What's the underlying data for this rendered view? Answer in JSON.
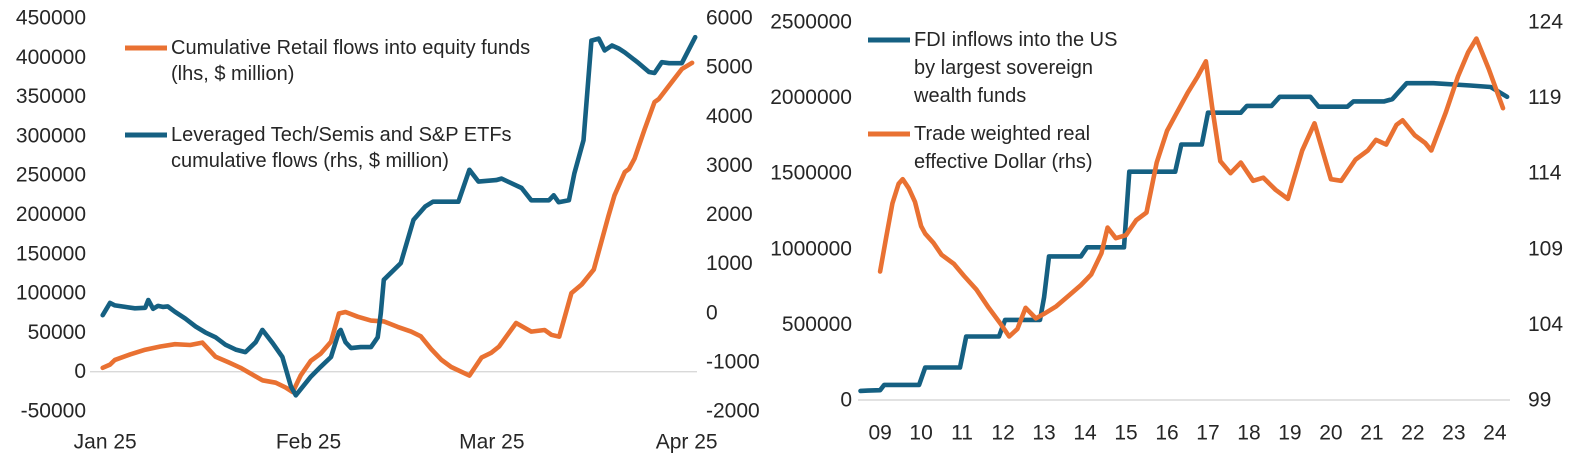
{
  "style": {
    "accent_orange": "#E97132",
    "accent_blue": "#156082",
    "gridline": "#D9D9D9",
    "text": "#262626",
    "background": "#FFFFFF"
  },
  "chart_data": [
    {
      "name": "retail-vs-leveraged-etf-flows-chart",
      "type": "line",
      "title": "",
      "grid": "zero-line-only",
      "legend_position": "top-left-inside",
      "x_axis": {
        "min": 0,
        "max": 100,
        "ticks": [
          {
            "label": "Jan 25",
            "x": 2.5
          },
          {
            "label": "Feb 25",
            "x": 36
          },
          {
            "label": "Mar 25",
            "x": 66.2
          },
          {
            "label": "Apr 25",
            "x": 98.3
          }
        ]
      },
      "left_axis": {
        "min": -50000,
        "max": 450000,
        "ticks": [
          450000,
          400000,
          350000,
          300000,
          250000,
          200000,
          150000,
          100000,
          50000,
          0,
          -50000
        ]
      },
      "right_axis": {
        "min": -2000,
        "max": 6000,
        "ticks": [
          6000,
          5000,
          4000,
          3000,
          2000,
          1000,
          0,
          -1000,
          -2000
        ]
      },
      "series": [
        {
          "key": "retail-flows",
          "axis": "left",
          "color": "#E97132",
          "legend_lines": [
            "Cumulative Retail flows into equity funds",
            "(lhs, $ million)"
          ],
          "points": [
            [
              2.1,
              5000
            ],
            [
              3.3,
              9000
            ],
            [
              4.1,
              15000
            ],
            [
              6.6,
              22000
            ],
            [
              9.1,
              28000
            ],
            [
              11.6,
              32000
            ],
            [
              14,
              35000
            ],
            [
              16.5,
              34000
            ],
            [
              18.5,
              37000
            ],
            [
              20.7,
              19000
            ],
            [
              22.8,
              12000
            ],
            [
              24.8,
              5000
            ],
            [
              26.8,
              -4000
            ],
            [
              28.4,
              -11000
            ],
            [
              30.6,
              -14000
            ],
            [
              32.2,
              -20000
            ],
            [
              33.4,
              -26000
            ],
            [
              34.7,
              -5000
            ],
            [
              36.4,
              14000
            ],
            [
              38,
              23000
            ],
            [
              39.7,
              38000
            ],
            [
              41,
              74000
            ],
            [
              42.1,
              76000
            ],
            [
              44.1,
              70000
            ],
            [
              46.3,
              65000
            ],
            [
              48.4,
              64000
            ],
            [
              50.7,
              57000
            ],
            [
              52.9,
              51000
            ],
            [
              54.5,
              45000
            ],
            [
              56.2,
              29000
            ],
            [
              57.9,
              15000
            ],
            [
              59.5,
              6000
            ],
            [
              62.5,
              -5000
            ],
            [
              64.5,
              18000
            ],
            [
              66.1,
              24000
            ],
            [
              67.4,
              32000
            ],
            [
              70.2,
              62000
            ],
            [
              72.7,
              51000
            ],
            [
              74.9,
              53000
            ],
            [
              76,
              47000
            ],
            [
              77.3,
              44500
            ],
            [
              79.3,
              100000
            ],
            [
              81,
              111000
            ],
            [
              83,
              130000
            ],
            [
              85.4,
              198000
            ],
            [
              86.4,
              224000
            ],
            [
              88.1,
              254000
            ],
            [
              88.8,
              258000
            ],
            [
              89.7,
              271000
            ],
            [
              91.4,
              309000
            ],
            [
              93,
              343000
            ],
            [
              93.7,
              347000
            ],
            [
              95.9,
              369000
            ],
            [
              97.5,
              385000
            ],
            [
              99.2,
              393000
            ]
          ]
        },
        {
          "key": "leveraged-etf-flows",
          "axis": "right",
          "color": "#156082",
          "legend_lines": [
            "Leveraged Tech/Semis and S&P ETFs",
            "cumulative flows (rhs, $ million)"
          ],
          "points": [
            [
              2.1,
              -50
            ],
            [
              3.3,
              200
            ],
            [
              4.1,
              150
            ],
            [
              5.8,
              120
            ],
            [
              7.4,
              90
            ],
            [
              9.1,
              100
            ],
            [
              9.6,
              260
            ],
            [
              10.4,
              80
            ],
            [
              11.2,
              140
            ],
            [
              12,
              120
            ],
            [
              12.8,
              130
            ],
            [
              14,
              20
            ],
            [
              15.7,
              -120
            ],
            [
              17.4,
              -280
            ],
            [
              19,
              -400
            ],
            [
              20.7,
              -500
            ],
            [
              22.3,
              -650
            ],
            [
              24,
              -750
            ],
            [
              25.6,
              -800
            ],
            [
              27.3,
              -600
            ],
            [
              28.4,
              -350
            ],
            [
              30.1,
              -620
            ],
            [
              31.7,
              -900
            ],
            [
              33.1,
              -1500
            ],
            [
              33.9,
              -1680
            ],
            [
              36.4,
              -1300
            ],
            [
              38,
              -1100
            ],
            [
              39.7,
              -900
            ],
            [
              41,
              -390
            ],
            [
              41.3,
              -350
            ],
            [
              42.1,
              -600
            ],
            [
              43,
              -720
            ],
            [
              44.6,
              -700
            ],
            [
              46.3,
              -700
            ],
            [
              47.4,
              -500
            ],
            [
              47.9,
              -10
            ],
            [
              48.4,
              670
            ],
            [
              51.2,
              1010
            ],
            [
              53.3,
              1890
            ],
            [
              55.2,
              2160
            ],
            [
              56.5,
              2260
            ],
            [
              60.7,
              2260
            ],
            [
              62.5,
              2910
            ],
            [
              64,
              2670
            ],
            [
              66.9,
              2700
            ],
            [
              67.8,
              2730
            ],
            [
              71.1,
              2540
            ],
            [
              72.7,
              2290
            ],
            [
              75.6,
              2290
            ],
            [
              76.4,
              2390
            ],
            [
              77.2,
              2250
            ],
            [
              78.9,
              2290
            ],
            [
              79.8,
              2840
            ],
            [
              81.3,
              3510
            ],
            [
              82.6,
              5540
            ],
            [
              83.8,
              5580
            ],
            [
              84.8,
              5340
            ],
            [
              86,
              5440
            ],
            [
              87.1,
              5380
            ],
            [
              88.1,
              5300
            ],
            [
              90.4,
              5080
            ],
            [
              92.1,
              4900
            ],
            [
              93,
              4880
            ],
            [
              94.2,
              5100
            ],
            [
              95.4,
              5080
            ],
            [
              97.5,
              5080
            ],
            [
              99.7,
              5610
            ]
          ]
        }
      ]
    },
    {
      "name": "fdi-vs-dollar-chart",
      "type": "line",
      "title": "",
      "grid": "baseline-only",
      "legend_position": "top-left-inside",
      "x_axis": {
        "min": 8.46,
        "max": 24.37,
        "ticks": [
          {
            "label": "09",
            "x": 9
          },
          {
            "label": "10",
            "x": 10
          },
          {
            "label": "11",
            "x": 11
          },
          {
            "label": "12",
            "x": 12
          },
          {
            "label": "13",
            "x": 13
          },
          {
            "label": "14",
            "x": 14
          },
          {
            "label": "15",
            "x": 15
          },
          {
            "label": "16",
            "x": 16
          },
          {
            "label": "17",
            "x": 17
          },
          {
            "label": "18",
            "x": 18
          },
          {
            "label": "19",
            "x": 19
          },
          {
            "label": "20",
            "x": 20
          },
          {
            "label": "21",
            "x": 21
          },
          {
            "label": "22",
            "x": 22
          },
          {
            "label": "23",
            "x": 23
          },
          {
            "label": "24",
            "x": 24
          }
        ]
      },
      "left_axis": {
        "min": 0,
        "max": 2500000,
        "ticks": [
          2500000,
          2000000,
          1500000,
          1000000,
          500000,
          0
        ]
      },
      "right_axis": {
        "min": 99,
        "max": 124,
        "ticks": [
          124,
          119,
          114,
          109,
          104,
          99
        ]
      },
      "series": [
        {
          "key": "fdi-inflows",
          "axis": "left",
          "color": "#156082",
          "legend_lines": [
            "FDI inflows into the US",
            "by largest sovereign",
            "wealth funds"
          ],
          "points": [
            [
              8.52,
              60000
            ],
            [
              8.7,
              62000
            ],
            [
              9.0,
              65000
            ],
            [
              9.1,
              100000
            ],
            [
              9.95,
              100000
            ],
            [
              10.1,
              215000
            ],
            [
              10.95,
              215000
            ],
            [
              11.1,
              420000
            ],
            [
              11.9,
              420000
            ],
            [
              12.05,
              530000
            ],
            [
              12.9,
              530000
            ],
            [
              13.0,
              680000
            ],
            [
              13.12,
              950000
            ],
            [
              13.9,
              950000
            ],
            [
              14.05,
              1010000
            ],
            [
              14.95,
              1010000
            ],
            [
              15.08,
              1510000
            ],
            [
              16.2,
              1510000
            ],
            [
              16.35,
              1690000
            ],
            [
              16.85,
              1690000
            ],
            [
              17.0,
              1900000
            ],
            [
              17.8,
              1900000
            ],
            [
              17.95,
              1945000
            ],
            [
              18.55,
              1945000
            ],
            [
              18.75,
              2005000
            ],
            [
              19.5,
              2005000
            ],
            [
              19.7,
              1940000
            ],
            [
              20.4,
              1940000
            ],
            [
              20.55,
              1975000
            ],
            [
              21.3,
              1975000
            ],
            [
              21.5,
              1990000
            ],
            [
              21.85,
              2095000
            ],
            [
              22.5,
              2095000
            ],
            [
              23.4,
              2080000
            ],
            [
              23.9,
              2070000
            ],
            [
              24.3,
              2005000
            ]
          ]
        },
        {
          "key": "trade-weighted-dollar",
          "axis": "right",
          "color": "#E97132",
          "legend_lines": [
            "Trade weighted real",
            "effective Dollar (rhs)"
          ],
          "points": [
            [
              9.0,
              107.5
            ],
            [
              9.15,
              109.8
            ],
            [
              9.3,
              112.0
            ],
            [
              9.45,
              113.3
            ],
            [
              9.55,
              113.6
            ],
            [
              9.7,
              113.0
            ],
            [
              9.85,
              112.1
            ],
            [
              10.0,
              110.5
            ],
            [
              10.1,
              110.0
            ],
            [
              10.3,
              109.4
            ],
            [
              10.5,
              108.6
            ],
            [
              10.8,
              108.0
            ],
            [
              11.05,
              107.2
            ],
            [
              11.35,
              106.3
            ],
            [
              11.65,
              105.1
            ],
            [
              11.95,
              104.0
            ],
            [
              12.15,
              103.2
            ],
            [
              12.35,
              103.7
            ],
            [
              12.55,
              105.1
            ],
            [
              12.8,
              104.4
            ],
            [
              13.0,
              104.7
            ],
            [
              13.3,
              105.2
            ],
            [
              13.6,
              105.9
            ],
            [
              13.9,
              106.6
            ],
            [
              14.15,
              107.3
            ],
            [
              14.4,
              108.7
            ],
            [
              14.55,
              110.4
            ],
            [
              14.75,
              109.7
            ],
            [
              15.0,
              109.9
            ],
            [
              15.25,
              110.9
            ],
            [
              15.5,
              111.4
            ],
            [
              15.75,
              114.7
            ],
            [
              16.0,
              116.8
            ],
            [
              16.2,
              117.8
            ],
            [
              16.5,
              119.3
            ],
            [
              16.75,
              120.4
            ],
            [
              16.95,
              121.4
            ],
            [
              17.1,
              118.4
            ],
            [
              17.3,
              114.8
            ],
            [
              17.55,
              114.0
            ],
            [
              17.8,
              114.7
            ],
            [
              18.1,
              113.5
            ],
            [
              18.35,
              113.7
            ],
            [
              18.65,
              112.9
            ],
            [
              18.95,
              112.3
            ],
            [
              19.3,
              115.5
            ],
            [
              19.6,
              117.3
            ],
            [
              20.0,
              113.6
            ],
            [
              20.25,
              113.5
            ],
            [
              20.6,
              114.9
            ],
            [
              20.9,
              115.5
            ],
            [
              21.1,
              116.2
            ],
            [
              21.35,
              115.9
            ],
            [
              21.6,
              117.2
            ],
            [
              21.75,
              117.5
            ],
            [
              22.05,
              116.5
            ],
            [
              22.3,
              116.0
            ],
            [
              22.45,
              115.5
            ],
            [
              22.8,
              118.0
            ],
            [
              23.1,
              120.4
            ],
            [
              23.35,
              122.0
            ],
            [
              23.55,
              122.9
            ],
            [
              23.85,
              120.9
            ],
            [
              24.2,
              118.3
            ]
          ]
        }
      ]
    }
  ]
}
